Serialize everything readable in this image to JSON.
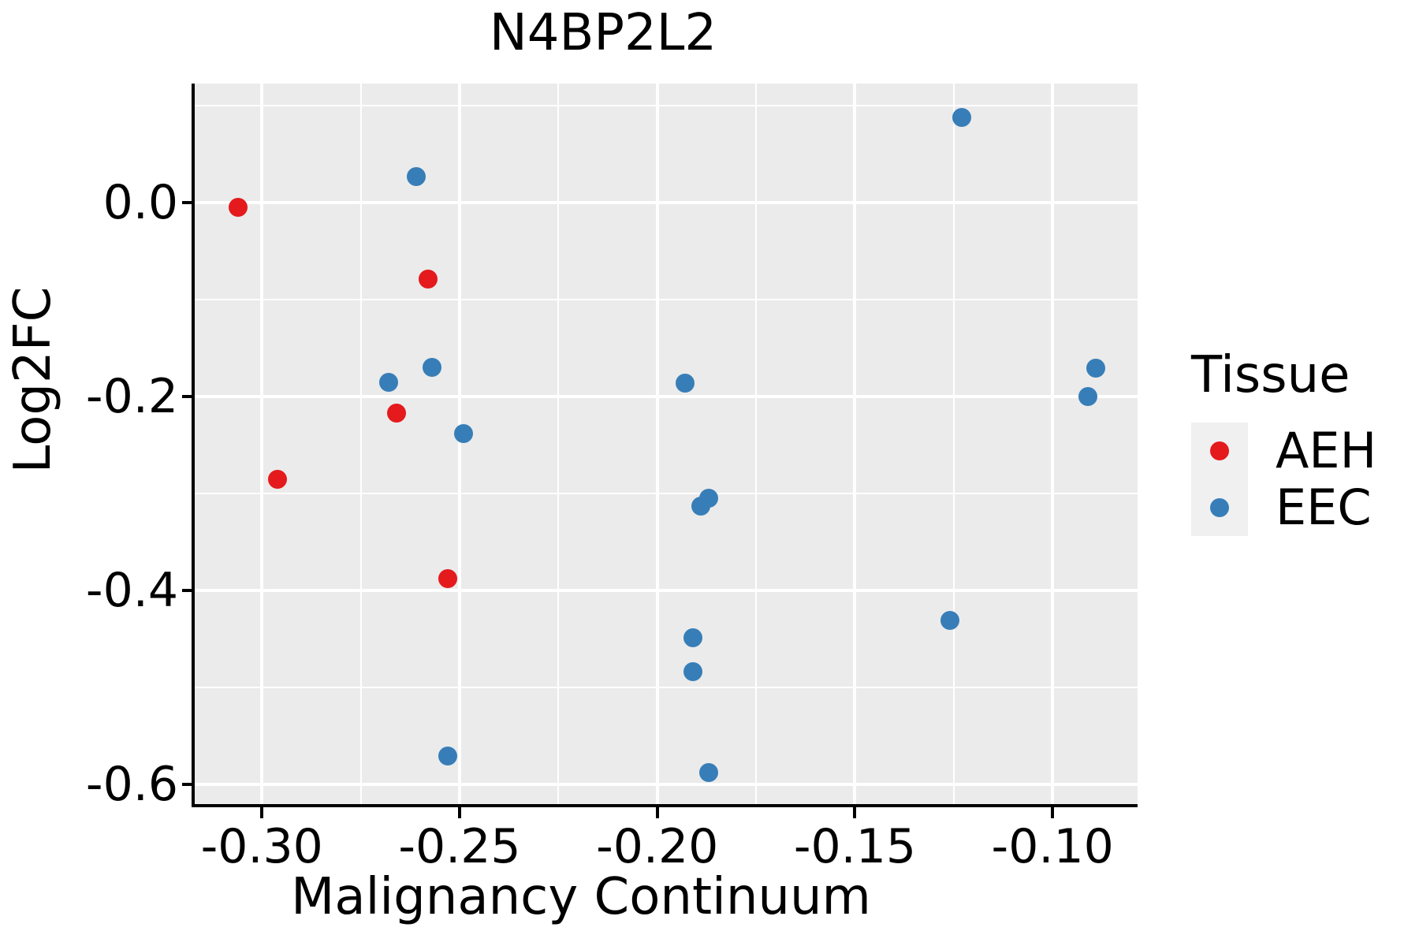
{
  "figure": {
    "background": "#FFFFFF"
  },
  "chart_data": {
    "type": "scatter",
    "title": "N4BP2L2",
    "xlabel": "Malignancy Continuum",
    "ylabel": "Log2FC",
    "xlim": [
      -0.317,
      -0.0785
    ],
    "ylim": [
      -0.6203,
      0.1228
    ],
    "x_ticks": {
      "values": [
        -0.3,
        -0.25,
        -0.2,
        -0.15,
        -0.1
      ],
      "labels": [
        "-0.30",
        "-0.25",
        "-0.20",
        "-0.15",
        "-0.10"
      ]
    },
    "y_ticks": {
      "values": [
        0.0,
        -0.2,
        -0.4,
        -0.6
      ],
      "labels": [
        "0.0",
        "-0.2",
        "-0.4",
        "-0.6"
      ]
    },
    "x_minor_ticks": [
      -0.275,
      -0.225,
      -0.175,
      -0.125
    ],
    "y_minor_ticks": [
      0.1,
      -0.1,
      -0.3,
      -0.5
    ],
    "grid": "on",
    "panel_background": "#EBEBEB",
    "gridline_color": "#FFFFFF",
    "axis_color": "#000000",
    "marker_diameter_px": 24,
    "legend": {
      "title": "Tissue",
      "position": "right-center",
      "entries": [
        {
          "label": "AEH",
          "color": "#E41A1C"
        },
        {
          "label": "EEC",
          "color": "#377EB8"
        }
      ]
    },
    "series": [
      {
        "name": "AEH",
        "color": "#E41A1C",
        "points": [
          [
            -0.306,
            -0.005
          ],
          [
            -0.258,
            -0.079
          ],
          [
            -0.266,
            -0.217
          ],
          [
            -0.296,
            -0.285
          ],
          [
            -0.253,
            -0.388
          ]
        ]
      },
      {
        "name": "EEC",
        "color": "#377EB8",
        "points": [
          [
            -0.261,
            0.027
          ],
          [
            -0.123,
            0.088
          ],
          [
            -0.257,
            -0.17
          ],
          [
            -0.268,
            -0.185
          ],
          [
            -0.249,
            -0.238
          ],
          [
            -0.193,
            -0.186
          ],
          [
            -0.187,
            -0.305
          ],
          [
            -0.189,
            -0.313
          ],
          [
            -0.191,
            -0.449
          ],
          [
            -0.191,
            -0.484
          ],
          [
            -0.187,
            -0.588
          ],
          [
            -0.253,
            -0.571
          ],
          [
            -0.089,
            -0.171
          ],
          [
            -0.091,
            -0.2
          ],
          [
            -0.126,
            -0.431
          ]
        ]
      }
    ]
  }
}
